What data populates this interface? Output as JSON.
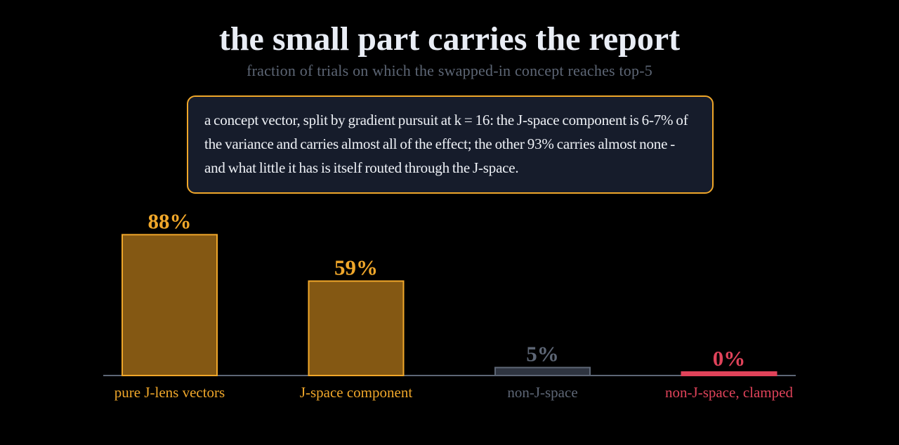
{
  "title": "the small part carries the report",
  "subtitle": "fraction of trials on which the swapped-in concept reaches top-5",
  "callout": {
    "text": "a concept vector, split by gradient pursuit at k = 16: the J-space component is 6-7% of the variance and carries almost all of the effect; the other 93% carries almost none - and what little it has is itself routed through the J-space."
  },
  "colors": {
    "background": "#000000",
    "accent": "#f0a72a",
    "accent_fill": "#845813",
    "neutral": "#5d6675",
    "neutral_fill": "#2e3440",
    "alert": "#e0435a",
    "callout_bg": "#161c2b"
  },
  "chart_data": {
    "type": "bar",
    "title": "the small part carries the report",
    "subtitle": "fraction of trials on which the swapped-in concept reaches top-5",
    "categories": [
      "pure J-lens vectors",
      "J-space component",
      "non-J-space",
      "non-J-space, clamped"
    ],
    "values": [
      88,
      59,
      5,
      0
    ],
    "value_labels": [
      "88%",
      "59%",
      "5%",
      "0%"
    ],
    "unit": "%",
    "ylim": [
      0,
      100
    ],
    "bar_styles": [
      "accent",
      "accent",
      "neutral",
      "alert"
    ],
    "grid": false,
    "legend": "none"
  }
}
